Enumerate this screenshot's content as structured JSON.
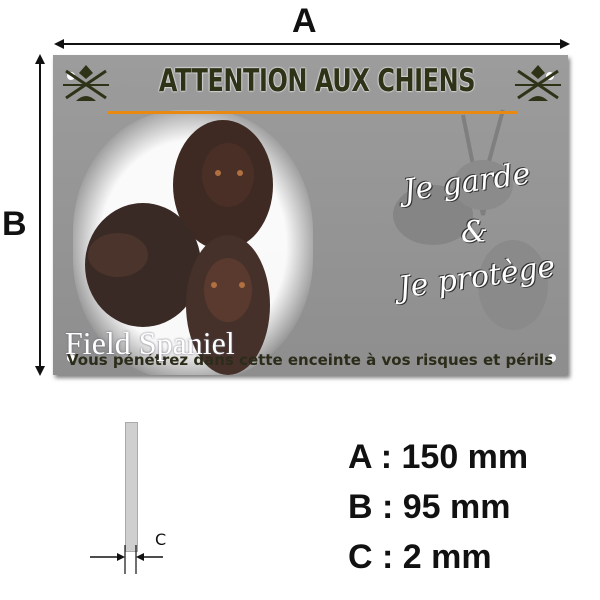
{
  "dimensions": {
    "a_label": "A",
    "b_label": "B",
    "c_label": "C"
  },
  "sign": {
    "title": "ATTENTION AUX CHIENS",
    "breed": "Field Spaniel",
    "motto_line1": "Je garde",
    "motto_amp": "&",
    "motto_line2": "Je protège",
    "tagline": "Vous pénétrez dans cette enceinte à vos risques et périls",
    "accent_color": "#e88a12",
    "title_color": "#2e3318"
  },
  "specs": [
    {
      "text": "A : 150 mm"
    },
    {
      "text": "B : 95 mm"
    },
    {
      "text": "C : 2 mm"
    }
  ]
}
